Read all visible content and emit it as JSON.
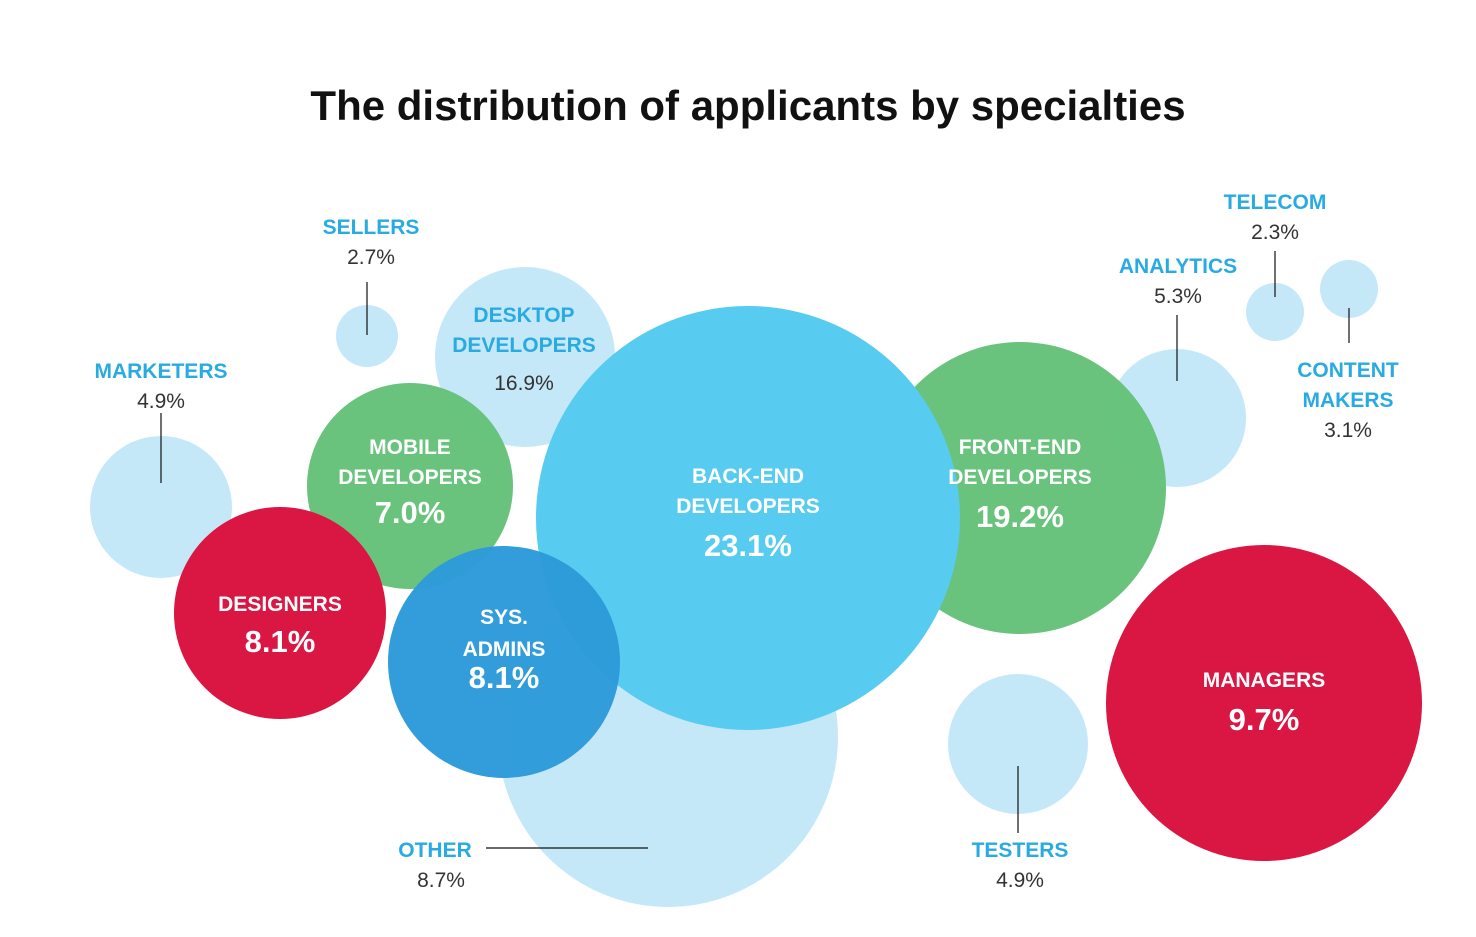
{
  "colors": {
    "light": "#c5e8f8",
    "cyan": "#57cbf0",
    "green": "#66c27a",
    "red": "#da1642",
    "blue": "#2e9bd9",
    "label_blue": "#29abe2"
  },
  "chart_data": {
    "type": "bubble",
    "title": "The distribution of applicants by specialties",
    "unit": "%",
    "bubbles": [
      {
        "key": "other",
        "lines": [
          "OTHER"
        ],
        "value": 8.7,
        "value_label": "8.7%",
        "color": "light"
      },
      {
        "key": "testers",
        "lines": [
          "TESTERS"
        ],
        "value": 4.9,
        "value_label": "4.9%",
        "color": "light"
      },
      {
        "key": "marketers",
        "lines": [
          "MARKETERS"
        ],
        "value": 4.9,
        "value_label": "4.9%",
        "color": "light"
      },
      {
        "key": "sellers",
        "lines": [
          "SELLERS"
        ],
        "value": 2.7,
        "value_label": "2.7%",
        "color": "light"
      },
      {
        "key": "desktop",
        "lines": [
          "DESKTOP",
          "DEVELOPERS"
        ],
        "value": 16.9,
        "value_label": "16.9%",
        "color": "light"
      },
      {
        "key": "analytics",
        "lines": [
          "ANALYTICS"
        ],
        "value": 5.3,
        "value_label": "5.3%",
        "color": "light"
      },
      {
        "key": "telecom",
        "lines": [
          "TELECOM"
        ],
        "value": 2.3,
        "value_label": "2.3%",
        "color": "light"
      },
      {
        "key": "content",
        "lines": [
          "CONTENT",
          "MAKERS"
        ],
        "value": 3.1,
        "value_label": "3.1%",
        "color": "light"
      },
      {
        "key": "frontend",
        "lines": [
          "FRONT-END",
          "DEVELOPERS"
        ],
        "value": 19.2,
        "value_label": "19.2%",
        "color": "green"
      },
      {
        "key": "mobile",
        "lines": [
          "MOBILE",
          "DEVELOPERS"
        ],
        "value": 7.0,
        "value_label": "7.0%",
        "color": "green"
      },
      {
        "key": "designers",
        "lines": [
          "DESIGNERS"
        ],
        "value": 8.1,
        "value_label": "8.1%",
        "color": "red"
      },
      {
        "key": "managers",
        "lines": [
          "MANAGERS"
        ],
        "value": 9.7,
        "value_label": "9.7%",
        "color": "red"
      },
      {
        "key": "backend",
        "lines": [
          "BACK-END",
          "DEVELOPERS"
        ],
        "value": 23.1,
        "value_label": "23.1%",
        "color": "cyan"
      },
      {
        "key": "sysadmins",
        "lines": [
          "SYS.",
          "ADMINS"
        ],
        "value": 8.1,
        "value_label": "8.1%",
        "color": "blue"
      }
    ]
  }
}
